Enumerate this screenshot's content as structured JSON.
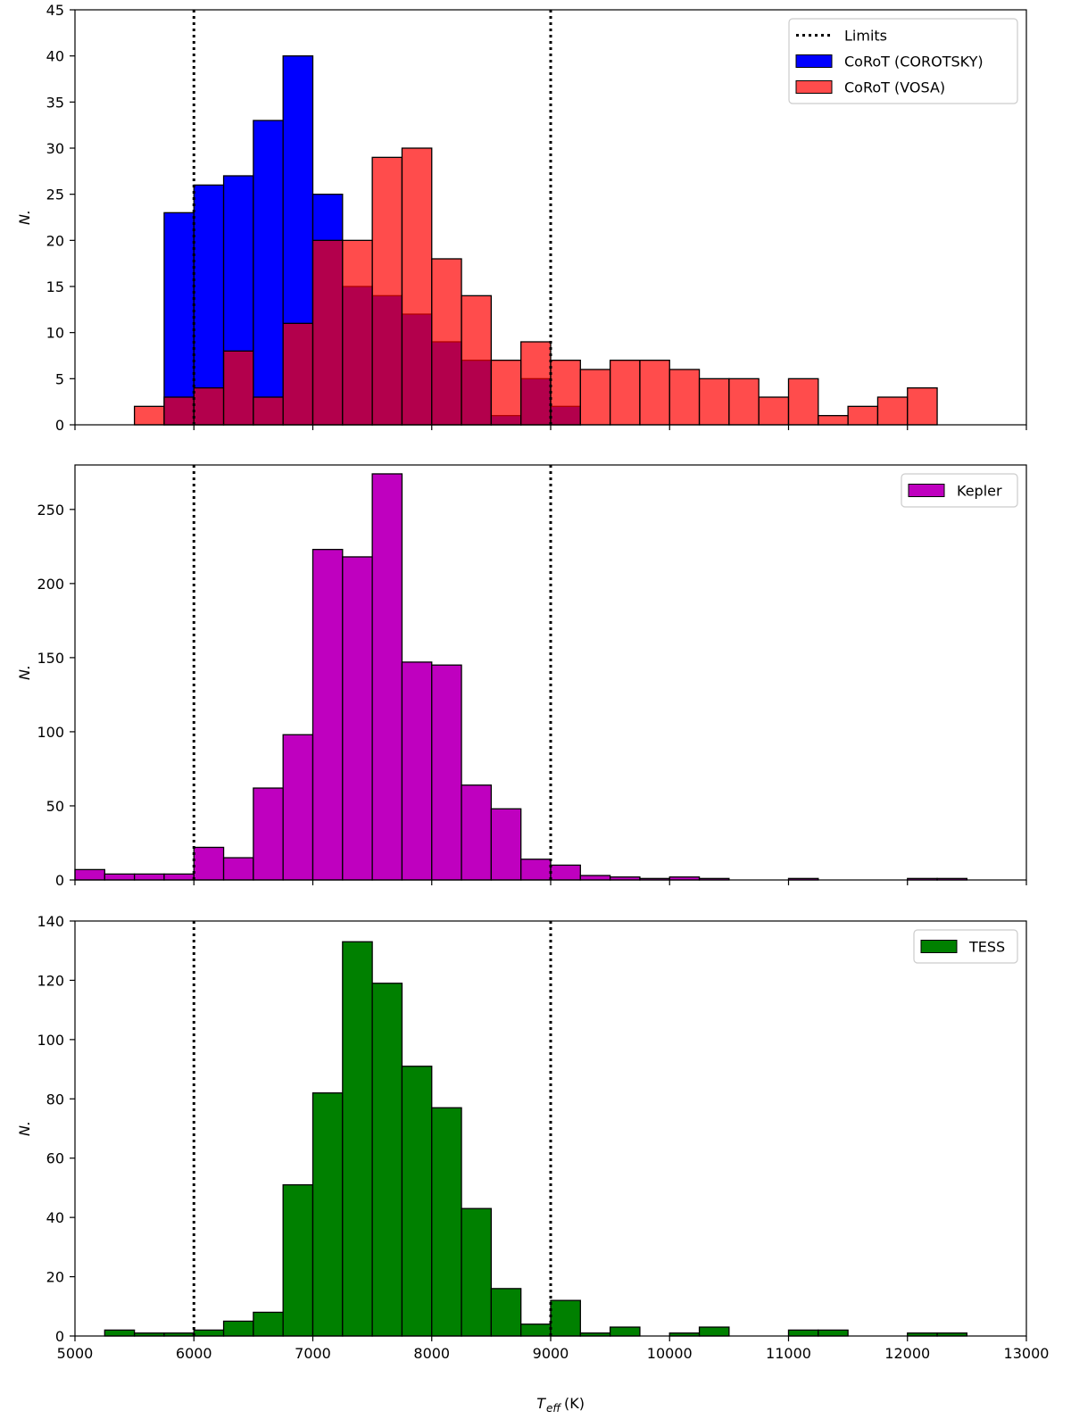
{
  "figure": {
    "x_axis_label": "T",
    "x_axis_label_sub": "eff",
    "x_axis_label_unit": "(K)"
  },
  "colors": {
    "limits": "#000000",
    "corot_corotsky": "#0000ff",
    "corot_vosa": "#ff0000",
    "kepler": "#bf00bf",
    "tess": "#008000",
    "edge": "#000000"
  },
  "chart_data": [
    {
      "type": "bar",
      "panel": "top",
      "xlim": [
        5000,
        13000
      ],
      "ylim": [
        0,
        45
      ],
      "yticks": [
        0,
        5,
        10,
        15,
        20,
        25,
        30,
        35,
        40,
        45
      ],
      "ylabel": "N.",
      "limits": {
        "label": "Limits",
        "x": [
          6000,
          9000
        ]
      },
      "legend_position": "top-right",
      "legend": [
        "Limits",
        "CoRoT (COROTSKY)",
        "CoRoT (VOSA)"
      ],
      "series": [
        {
          "name": "CoRoT (COROTSKY)",
          "color": "#0000ff",
          "alpha": 1.0,
          "bin_edges": [
            5000,
            5250,
            5500,
            5750,
            6000,
            6250,
            6500,
            6750,
            7000,
            7250,
            7500,
            7750,
            8000,
            8250,
            8500,
            8750,
            9000,
            9250,
            9500,
            9750,
            10000,
            10250,
            10500,
            10750,
            11000,
            11250,
            11500,
            11750,
            12000,
            12250,
            12500,
            12750
          ],
          "values": [
            0,
            0,
            0,
            23,
            26,
            27,
            33,
            40,
            25,
            15,
            14,
            12,
            9,
            7,
            1,
            5,
            2,
            0,
            0,
            0,
            0,
            0,
            0,
            0,
            0,
            0,
            0,
            0,
            0,
            0,
            0
          ]
        },
        {
          "name": "CoRoT (VOSA)",
          "color": "#ff0000",
          "alpha": 0.7,
          "bin_edges": [
            5000,
            5250,
            5500,
            5750,
            6000,
            6250,
            6500,
            6750,
            7000,
            7250,
            7500,
            7750,
            8000,
            8250,
            8500,
            8750,
            9000,
            9250,
            9500,
            9750,
            10000,
            10250,
            10500,
            10750,
            11000,
            11250,
            11500,
            11750,
            12000,
            12250,
            12500,
            12750
          ],
          "values": [
            0,
            0,
            2,
            3,
            4,
            8,
            3,
            11,
            20,
            20,
            29,
            30,
            18,
            14,
            7,
            9,
            7,
            6,
            7,
            7,
            6,
            5,
            5,
            3,
            5,
            1,
            2,
            3,
            4,
            0,
            0
          ]
        }
      ]
    },
    {
      "type": "bar",
      "panel": "middle",
      "xlim": [
        5000,
        13000
      ],
      "ylim": [
        0,
        280
      ],
      "yticks": [
        0,
        50,
        100,
        150,
        200,
        250
      ],
      "ylabel": "N.",
      "limits": {
        "label": "Limits",
        "x": [
          6000,
          9000
        ]
      },
      "legend_position": "top-right",
      "legend": [
        "Kepler"
      ],
      "series": [
        {
          "name": "Kepler",
          "color": "#bf00bf",
          "alpha": 1.0,
          "bin_edges": [
            5000,
            5250,
            5500,
            5750,
            6000,
            6250,
            6500,
            6750,
            7000,
            7250,
            7500,
            7750,
            8000,
            8250,
            8500,
            8750,
            9000,
            9250,
            9500,
            9750,
            10000,
            10250,
            10500,
            10750,
            11000,
            11250,
            11500,
            11750,
            12000,
            12250,
            12500,
            12750
          ],
          "values": [
            7,
            4,
            4,
            4,
            22,
            15,
            62,
            98,
            223,
            218,
            274,
            147,
            145,
            64,
            48,
            14,
            10,
            3,
            2,
            1,
            2,
            1,
            0,
            0,
            1,
            0,
            0,
            0,
            1,
            1,
            0
          ]
        }
      ]
    },
    {
      "type": "bar",
      "panel": "bottom",
      "xlim": [
        5000,
        13000
      ],
      "ylim": [
        0,
        140
      ],
      "yticks": [
        0,
        20,
        40,
        60,
        80,
        100,
        120,
        140
      ],
      "xticks": [
        5000,
        6000,
        7000,
        8000,
        9000,
        10000,
        11000,
        12000,
        13000
      ],
      "ylabel": "N.",
      "xlabel": "T_eff (K)",
      "limits": {
        "label": "Limits",
        "x": [
          6000,
          9000
        ]
      },
      "legend_position": "top-right",
      "legend": [
        "TESS"
      ],
      "series": [
        {
          "name": "TESS",
          "color": "#008000",
          "alpha": 1.0,
          "bin_edges": [
            5000,
            5250,
            5500,
            5750,
            6000,
            6250,
            6500,
            6750,
            7000,
            7250,
            7500,
            7750,
            8000,
            8250,
            8500,
            8750,
            9000,
            9250,
            9500,
            9750,
            10000,
            10250,
            10500,
            10750,
            11000,
            11250,
            11500,
            11750,
            12000,
            12250,
            12500,
            12750
          ],
          "values": [
            0,
            2,
            1,
            1,
            2,
            5,
            8,
            51,
            82,
            133,
            119,
            91,
            77,
            43,
            16,
            4,
            12,
            1,
            3,
            0,
            1,
            3,
            0,
            0,
            2,
            2,
            0,
            0,
            1,
            1,
            0
          ]
        }
      ]
    }
  ]
}
